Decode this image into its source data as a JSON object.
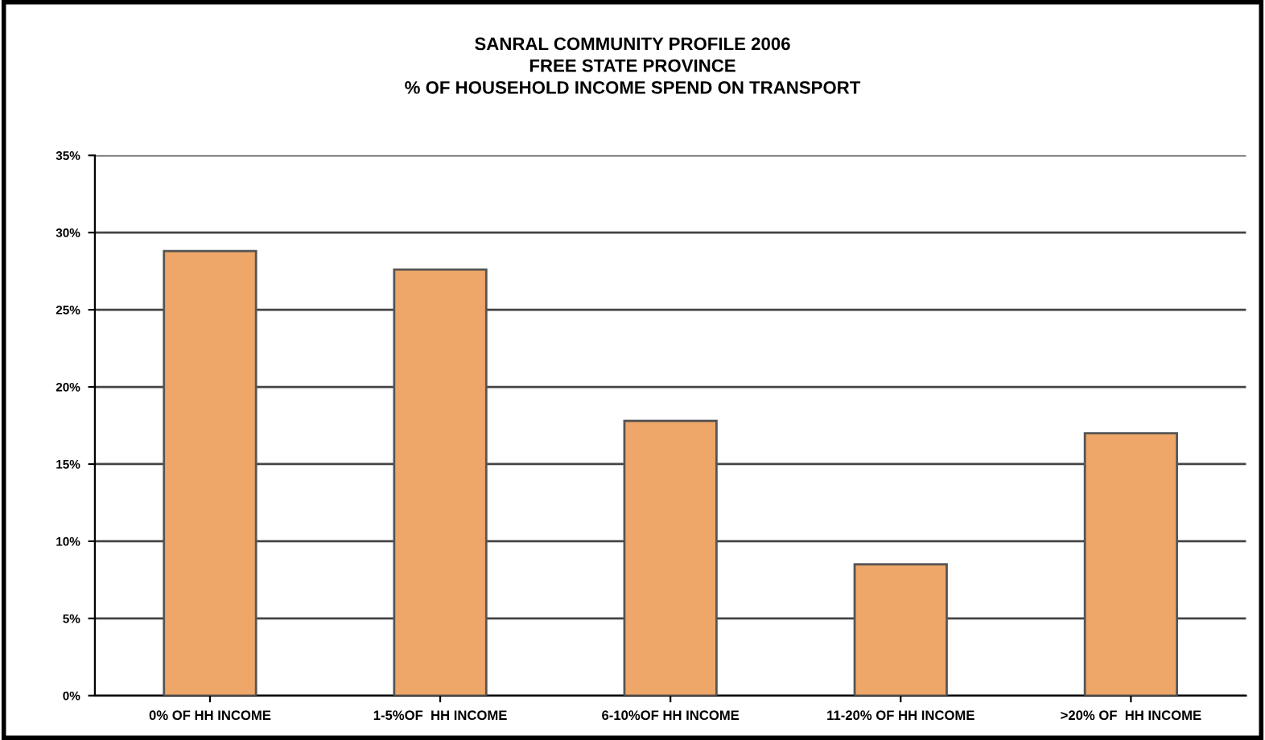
{
  "chart_data": {
    "type": "bar",
    "title": "SANRAL COMMUNITY PROFILE 2006\nFREE STATE PROVINCE\n% OF HOUSEHOLD INCOME SPEND ON TRANSPORT",
    "categories": [
      "0% OF HH INCOME",
      "1-5%OF  HH INCOME",
      "6-10%OF HH INCOME",
      "11-20% OF HH INCOME",
      ">20% OF  HH INCOME"
    ],
    "values": [
      28.8,
      27.6,
      17.8,
      8.5,
      17.0
    ],
    "color": "#eea768",
    "ylim": [
      0,
      35
    ],
    "yticks": [
      {
        "value": 0,
        "label": "0%"
      },
      {
        "value": 5,
        "label": "5%"
      },
      {
        "value": 10,
        "label": "10%"
      },
      {
        "value": 15,
        "label": "15%"
      },
      {
        "value": 20,
        "label": "20%"
      },
      {
        "value": 25,
        "label": "25%"
      },
      {
        "value": 30,
        "label": "30%"
      },
      {
        "value": 35,
        "label": "35%"
      }
    ],
    "grid": "y"
  }
}
